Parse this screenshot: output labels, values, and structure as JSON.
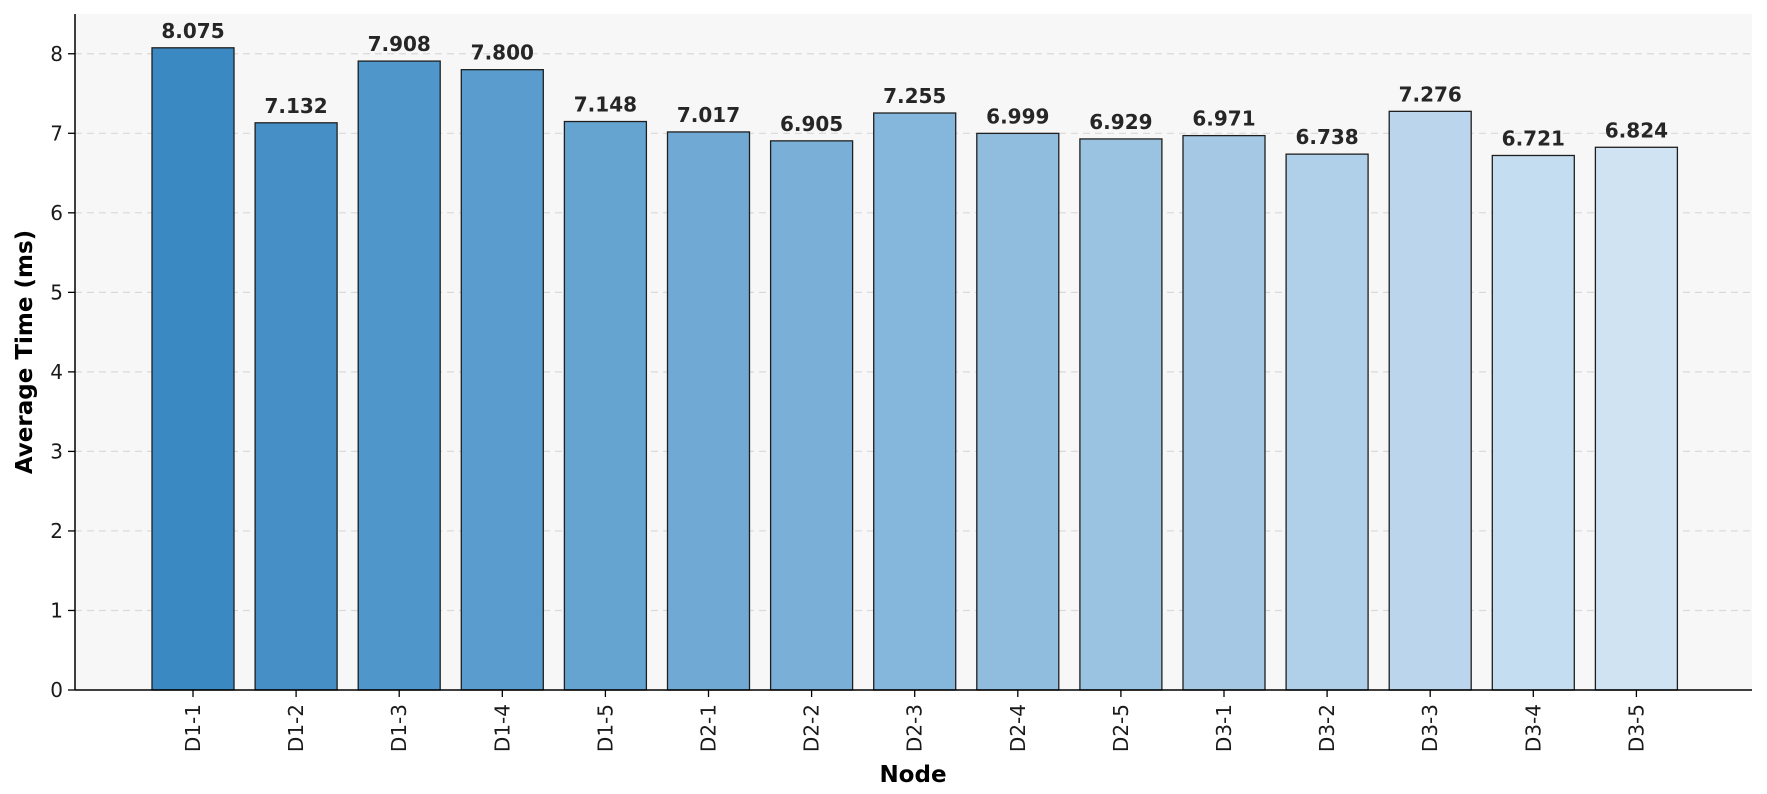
{
  "chart_data": {
    "type": "bar",
    "title": "",
    "xlabel": "Node",
    "ylabel": "Average Time (ms)",
    "categories": [
      "D1-1",
      "D1-2",
      "D1-3",
      "D1-4",
      "D1-5",
      "D2-1",
      "D2-2",
      "D2-3",
      "D2-4",
      "D2-5",
      "D3-1",
      "D3-2",
      "D3-3",
      "D3-4",
      "D3-5"
    ],
    "values": [
      8.075,
      7.132,
      7.908,
      7.8,
      7.148,
      7.017,
      6.905,
      7.255,
      6.999,
      6.929,
      6.971,
      6.738,
      7.276,
      6.721,
      6.824
    ],
    "value_labels": [
      "8.075",
      "7.132",
      "7.908",
      "7.800",
      "7.148",
      "7.017",
      "6.905",
      "7.255",
      "6.999",
      "6.929",
      "6.971",
      "6.738",
      "7.276",
      "6.721",
      "6.824"
    ],
    "ylim": [
      0,
      8.5
    ],
    "yticks": [
      "0",
      "1",
      "2",
      "3",
      "4",
      "5",
      "6",
      "7",
      "8"
    ],
    "grid": "horizontal-dashed",
    "legend": "none",
    "colors": {
      "plot_background": "#f7f7f7",
      "grid": "#d9d9d9",
      "bar_edge": "#1f1f1f",
      "bar_gradient_start": "#3a89c3",
      "bar_gradient_end": "#d0e3f3"
    }
  }
}
